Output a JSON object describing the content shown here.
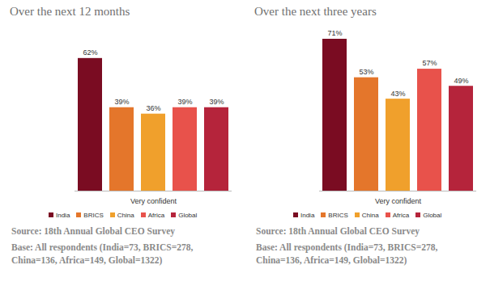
{
  "chart_data": [
    {
      "type": "bar",
      "title": "Over the next 12 months",
      "categories": [
        "Very confident"
      ],
      "series": [
        {
          "name": "India",
          "color": "#7a0c22",
          "values": [
            62
          ],
          "value_labels": [
            "62%"
          ]
        },
        {
          "name": "BRICS",
          "color": "#e4762b",
          "values": [
            39
          ],
          "value_labels": [
            "39%"
          ]
        },
        {
          "name": "China",
          "color": "#f0a02c",
          "values": [
            36
          ],
          "value_labels": [
            "36%"
          ]
        },
        {
          "name": "Africa",
          "color": "#e8524b",
          "values": [
            39
          ],
          "value_labels": [
            "39%"
          ]
        },
        {
          "name": "Global",
          "color": "#b5243b",
          "values": [
            39
          ],
          "value_labels": [
            "39%"
          ]
        }
      ],
      "data_labels": true,
      "tick_labels": "x",
      "grid": false,
      "legend": "bottom",
      "notes": [
        "Source: 18th Annual Global CEO Survey",
        "Base: All respondents (India=73, BRICS=278, China=136, Africa=149, Global=1322)"
      ]
    },
    {
      "type": "bar",
      "title": "Over the next three years",
      "categories": [
        "Very confident"
      ],
      "series": [
        {
          "name": "India",
          "color": "#7a0c22",
          "values": [
            71
          ],
          "value_labels": [
            "71%"
          ]
        },
        {
          "name": "BRICS",
          "color": "#e4762b",
          "values": [
            53
          ],
          "value_labels": [
            "53%"
          ]
        },
        {
          "name": "China",
          "color": "#f0a02c",
          "values": [
            43
          ],
          "value_labels": [
            "43%"
          ]
        },
        {
          "name": "Africa",
          "color": "#e8524b",
          "values": [
            57
          ],
          "value_labels": [
            "57%"
          ]
        },
        {
          "name": "Global",
          "color": "#b5243b",
          "values": [
            49
          ],
          "value_labels": [
            "49%"
          ]
        }
      ],
      "data_labels": true,
      "tick_labels": "x",
      "grid": false,
      "legend": "bottom",
      "notes": [
        "Source: 18th Annual Global CEO Survey",
        "Base: All respondents (India=73, BRICS=278, China=136, Africa=149, Global=1322)"
      ]
    }
  ]
}
